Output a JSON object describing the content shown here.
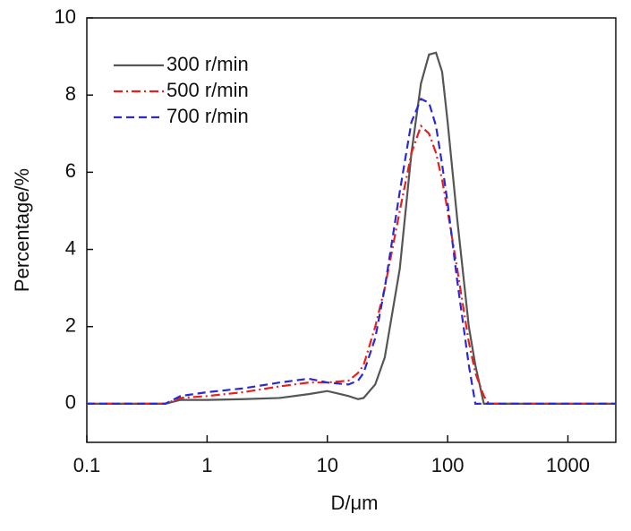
{
  "chart_data": {
    "type": "line",
    "xlabel": "D/μm",
    "ylabel": "Percentage/%",
    "xscale": "log",
    "xlim": [
      0.1,
      2500
    ],
    "xticks": [
      0.1,
      1,
      10,
      100,
      1000
    ],
    "ylim": [
      -1,
      10
    ],
    "yticks": [
      0,
      2,
      4,
      6,
      8,
      10
    ],
    "legend": "upper left",
    "x": [
      0.1,
      0.45,
      0.6,
      1,
      2,
      4,
      7,
      10,
      15,
      18,
      20,
      25,
      30,
      40,
      50,
      60,
      70,
      80,
      90,
      100,
      120,
      150,
      170,
      200,
      220,
      2500
    ],
    "series": [
      {
        "name": "300 r/min",
        "color": "#555555",
        "linestyle": "solid",
        "values": [
          0,
          0,
          0.1,
          0.1,
          0.12,
          0.15,
          0.25,
          0.33,
          0.2,
          0.12,
          0.15,
          0.5,
          1.2,
          3.5,
          6.5,
          8.3,
          9.05,
          9.1,
          8.6,
          7.3,
          4.8,
          2.0,
          1.0,
          0,
          0,
          0
        ]
      },
      {
        "name": "500 r/min",
        "color": "#e8201c",
        "linestyle": "dashdot",
        "values": [
          0,
          0,
          0.15,
          0.2,
          0.3,
          0.45,
          0.55,
          0.55,
          0.6,
          0.8,
          1.0,
          2.0,
          3.0,
          5.0,
          6.5,
          7.2,
          7.0,
          6.5,
          5.8,
          5.0,
          3.5,
          1.6,
          0.8,
          0.2,
          0,
          0
        ]
      },
      {
        "name": "700 r/min",
        "color": "#2a2ad0",
        "linestyle": "dashed",
        "values": [
          0,
          0,
          0.2,
          0.3,
          0.4,
          0.55,
          0.65,
          0.55,
          0.5,
          0.6,
          0.8,
          1.7,
          3.0,
          5.5,
          7.3,
          7.9,
          7.8,
          7.2,
          6.2,
          5.2,
          3.2,
          1.0,
          0,
          0,
          0,
          0
        ]
      }
    ]
  }
}
